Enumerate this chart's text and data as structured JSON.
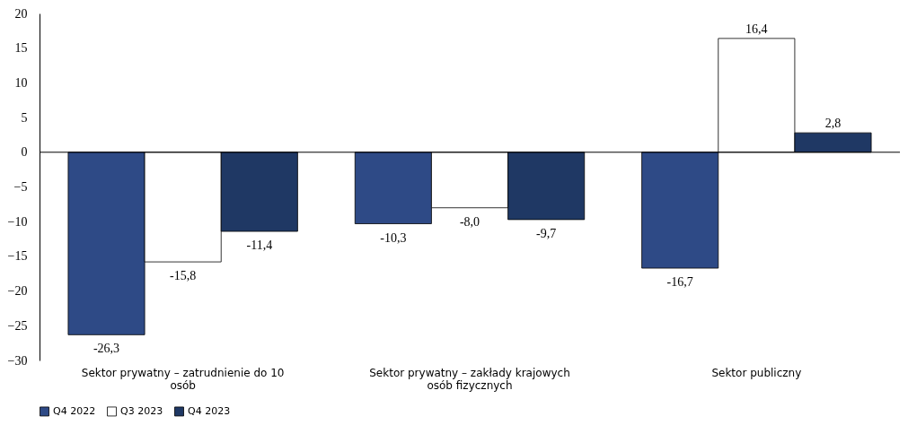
{
  "chart_data": {
    "type": "bar",
    "categories": [
      "Sektor prywatny – zatrudnienie do 10 osób",
      "Sektor prywatny – zakłady krajowych osób fizycznych",
      "Sektor publiczny"
    ],
    "series": [
      {
        "name": "Q4 2022",
        "color": "#2e4a86",
        "values": [
          -26.3,
          -10.3,
          -16.7
        ],
        "value_labels": [
          "-26,3",
          "-10,3",
          "-16,7"
        ]
      },
      {
        "name": "Q3 2023",
        "color": "#ffffff",
        "values": [
          -15.8,
          -8.0,
          16.4
        ],
        "value_labels": [
          "-15,8",
          "-8,0",
          "16,4"
        ]
      },
      {
        "name": "Q4 2023",
        "color": "#1f3864",
        "values": [
          -11.4,
          -9.7,
          2.8
        ],
        "value_labels": [
          "-11,4",
          "-9,7",
          "2,8"
        ]
      }
    ],
    "ylim": [
      -30,
      20
    ],
    "yticks": [
      -30,
      -25,
      -20,
      -15,
      -10,
      -5,
      0,
      5,
      10,
      15,
      20
    ],
    "ref_lines": [
      {
        "axis": "y",
        "value": 0,
        "color": "#000000"
      }
    ],
    "grid": false,
    "legend": "bottom"
  }
}
